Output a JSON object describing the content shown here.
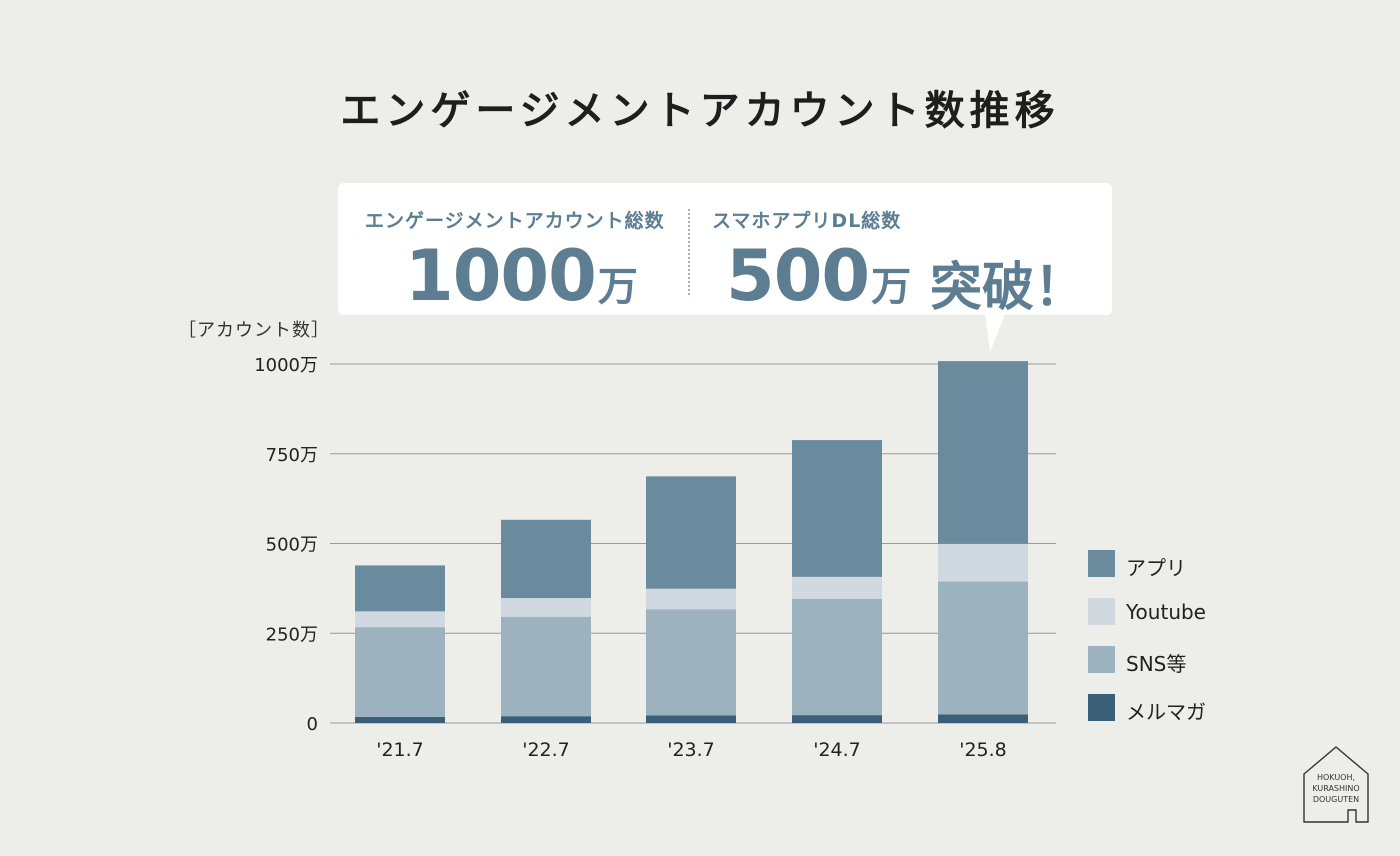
{
  "title": "エンゲージメントアカウント数推移",
  "callout": {
    "stat1_label": "エンゲージメントアカウント総数",
    "stat1_value": "1000",
    "stat1_unit": "万",
    "stat2_label": "スマホアプリDL総数",
    "stat2_value": "500",
    "stat2_unit": "万",
    "breakthrough": "突破！"
  },
  "y_unit_label": "［アカウント数］",
  "logo": {
    "lines": [
      "HOKUOH,",
      "KURASHINO",
      "DOUGUTEN"
    ]
  },
  "colors": {
    "app": "#6a8a9e",
    "youtube": "#cfd9df",
    "sns": "#9db2bf",
    "mail": "#3a6079",
    "grid": "#9a9a9a"
  },
  "chart_data": {
    "type": "bar",
    "stacked": true,
    "categories": [
      "'21.7",
      "'22.7",
      "'23.7",
      "'24.7",
      "'25.8"
    ],
    "ylim": [
      0,
      1000
    ],
    "yticks": [
      0,
      250,
      500,
      750,
      1000
    ],
    "ytick_labels": [
      "0",
      "250万",
      "500万",
      "750万",
      "1000万"
    ],
    "grid": true,
    "legend_position": "right",
    "series": [
      {
        "name": "メルマガ",
        "values": [
          17,
          19,
          21,
          22,
          24
        ],
        "color": "#3a6079"
      },
      {
        "name": "SNS等",
        "values": [
          250,
          277,
          296,
          324,
          370
        ],
        "color": "#9db2bf"
      },
      {
        "name": "Youtube",
        "values": [
          44,
          52,
          57,
          61,
          105
        ],
        "color": "#cfd9df"
      },
      {
        "name": "アプリ",
        "values": [
          128,
          218,
          313,
          381,
          509
        ],
        "color": "#6a8a9e"
      }
    ],
    "legend_order": [
      "アプリ",
      "Youtube",
      "SNS等",
      "メルマガ"
    ]
  }
}
